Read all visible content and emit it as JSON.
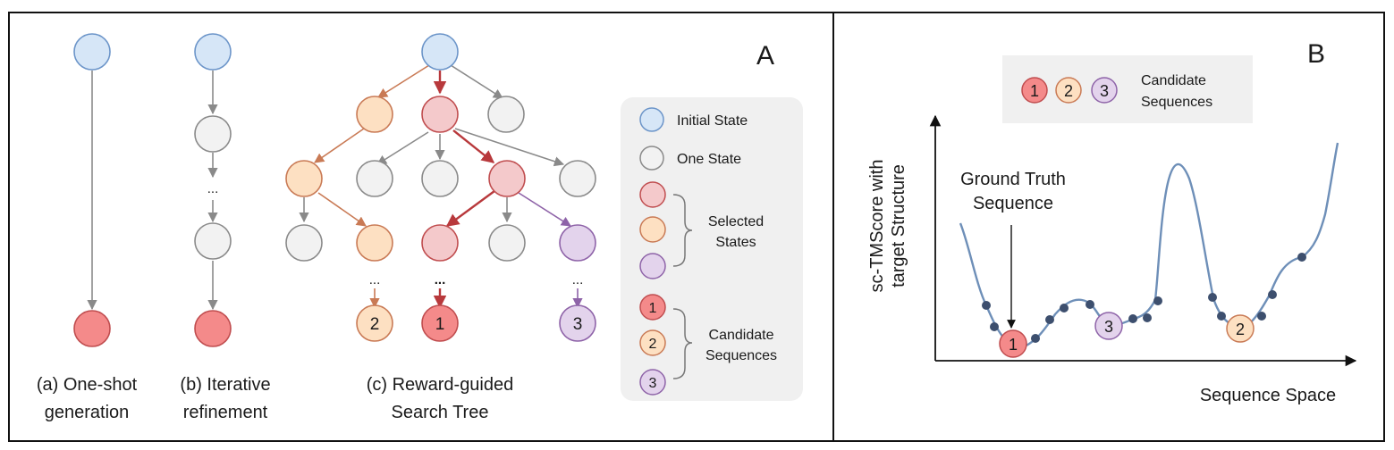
{
  "panel_a": {
    "letter": "A",
    "captions": {
      "one_shot": [
        "(a) One-shot",
        "generation"
      ],
      "iterative": [
        "(b) Iterative",
        "refinement"
      ],
      "reward": [
        "(c) Reward-guided",
        "Search Tree"
      ]
    },
    "ellipsis": "...",
    "candidates": [
      "1",
      "2",
      "3"
    ],
    "legend": {
      "initial": "Initial State",
      "one_state": "One State",
      "selected": [
        "Selected",
        "States"
      ],
      "candidate_seq": [
        "Candidate",
        "Sequences"
      ],
      "numbers": [
        "1",
        "2",
        "3"
      ]
    }
  },
  "panel_b": {
    "letter": "B",
    "legend_numbers": [
      "1",
      "2",
      "3"
    ],
    "legend_label": [
      "Candidate",
      "Sequences"
    ],
    "ylabel": [
      "sc-TMScore with",
      "target Structure"
    ],
    "xlabel": "Sequence Space",
    "annotation": [
      "Ground Truth",
      "Sequence"
    ],
    "markers": [
      "1",
      "3",
      "2"
    ]
  },
  "colors": {
    "initial_fill": "#d6e6f7",
    "initial_stroke": "#6c95c9",
    "state_fill": "#f2f2f2",
    "state_stroke": "#8a8a8a",
    "red_fill": "#f4c9cb",
    "red_stroke": "#c04d4f",
    "solid_red": "#f48a8a",
    "orange_fill": "#fde0c2",
    "orange_stroke": "#c97a55",
    "purple_fill": "#e3d3ec",
    "purple_stroke": "#8e63a8",
    "curve": "#6e8fb8",
    "dot": "#3d4f6e"
  }
}
